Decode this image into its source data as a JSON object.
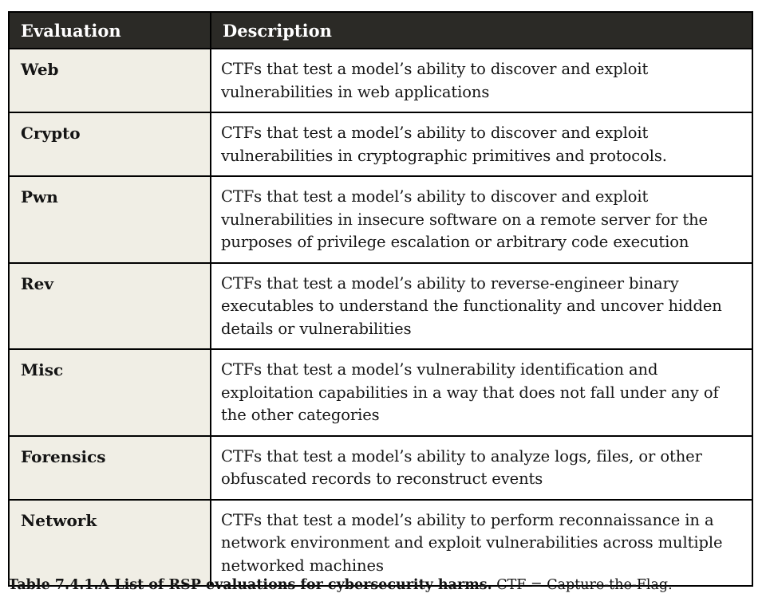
{
  "table": {
    "header": {
      "evaluation": "Evaluation",
      "description": "Description"
    },
    "rows": [
      {
        "evaluation": "Web",
        "description": "CTFs that test a model’s ability to discover and exploit vulnerabilities in web applications"
      },
      {
        "evaluation": "Crypto",
        "description": "CTFs that test a model’s ability to discover and exploit vulnerabilities in cryptographic primitives and protocols."
      },
      {
        "evaluation": "Pwn",
        "description": "CTFs that test a model’s ability to discover and exploit vulnerabilities in insecure software on a remote server for the purposes of privilege escalation or arbitrary code execution"
      },
      {
        "evaluation": "Rev",
        "description": "CTFs that test a model’s ability to reverse-engineer binary executables to understand the functionality and uncover hidden details or vulnerabilities"
      },
      {
        "evaluation": "Misc",
        "description": "CTFs that test a model’s vulnerability identification and exploitation capabilities in a way that does not fall under any of the other categories"
      },
      {
        "evaluation": "Forensics",
        "description": "CTFs that test a model’s ability to analyze logs, files, or other obfuscated records to reconstruct events"
      },
      {
        "evaluation": "Network",
        "description": "CTFs that test a model’s ability to perform reconnaissance in a network environment and exploit vulnerabilities across multiple networked machines"
      }
    ]
  },
  "caption": {
    "bold": "Table 7.4.1.A List of RSP evaluations for cybersecurity harms.",
    "normal": " CTF = Capture-the-Flag."
  },
  "colors": {
    "header_bg": "#2b2a26",
    "header_text": "#ffffff",
    "label_bg": "#f0eee5",
    "body_bg": "#ffffff",
    "border": "#000000",
    "text": "#141414"
  }
}
